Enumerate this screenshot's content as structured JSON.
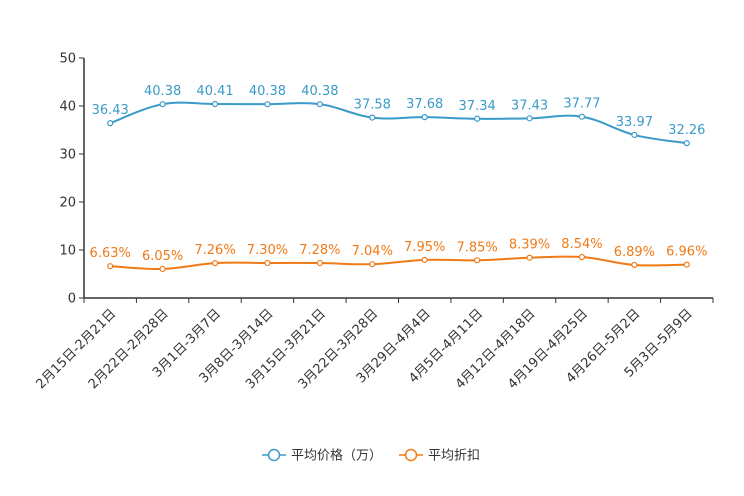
{
  "chart_data": {
    "type": "line",
    "categories": [
      "2月15日-2月21日",
      "2月22日-2月28日",
      "3月1日-3月7日",
      "3月8日-3月14日",
      "3月15日-3月21日",
      "3月22日-3月28日",
      "3月29日-4月4日",
      "4月5日-4月11日",
      "4月12日-4月18日",
      "4月19日-4月25日",
      "4月26日-5月2日",
      "5月3日-5月9日"
    ],
    "ylim": [
      0,
      50
    ],
    "yticks": [
      0,
      10,
      20,
      30,
      40,
      50
    ],
    "legend_position": "bottom",
    "series": [
      {
        "name": "平均价格（万）",
        "color": "#3a9bc9",
        "values": [
          36.43,
          40.38,
          40.41,
          40.38,
          40.38,
          37.58,
          37.68,
          37.34,
          37.43,
          37.77,
          33.97,
          32.26
        ],
        "labels": [
          "36.43",
          "40.38",
          "40.41",
          "40.38",
          "40.38",
          "37.58",
          "37.68",
          "37.34",
          "37.43",
          "37.77",
          "33.97",
          "32.26"
        ]
      },
      {
        "name": "平均折扣",
        "color": "#f07a17",
        "values": [
          6.63,
          6.05,
          7.26,
          7.3,
          7.28,
          7.04,
          7.95,
          7.85,
          8.39,
          8.54,
          6.89,
          6.96
        ],
        "labels": [
          "6.63%",
          "6.05%",
          "7.26%",
          "7.30%",
          "7.28%",
          "7.04%",
          "7.95%",
          "7.85%",
          "8.39%",
          "8.54%",
          "6.89%",
          "6.96%"
        ]
      }
    ]
  }
}
